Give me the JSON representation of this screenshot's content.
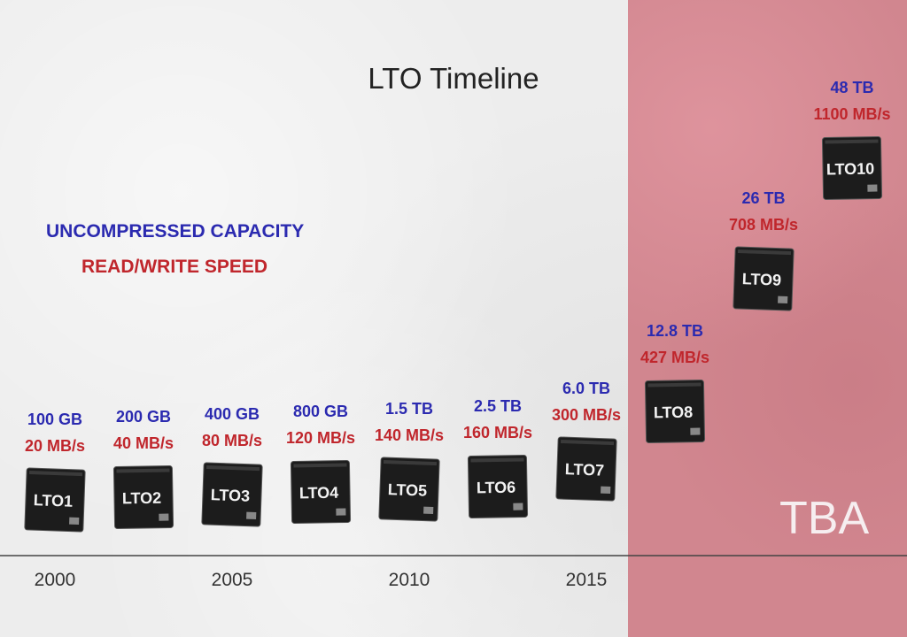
{
  "chart_data": {
    "type": "timeline",
    "title": "LTO Timeline",
    "legend": {
      "capacity_label": "UNCOMPRESSED CAPACITY",
      "speed_label": "READ/WRITE SPEED"
    },
    "x_ticks": [
      "2000",
      "2005",
      "2010",
      "2015"
    ],
    "tba_label": "TBA",
    "generations": [
      {
        "name": "LTO1",
        "capacity": "100 GB",
        "speed": "20 MB/s",
        "capacity_gb": 100,
        "speed_mbs": 20,
        "tba": false
      },
      {
        "name": "LTO2",
        "capacity": "200 GB",
        "speed": "40 MB/s",
        "capacity_gb": 200,
        "speed_mbs": 40,
        "tba": false
      },
      {
        "name": "LTO3",
        "capacity": "400 GB",
        "speed": "80 MB/s",
        "capacity_gb": 400,
        "speed_mbs": 80,
        "tba": false
      },
      {
        "name": "LTO4",
        "capacity": "800 GB",
        "speed": "120 MB/s",
        "capacity_gb": 800,
        "speed_mbs": 120,
        "tba": false
      },
      {
        "name": "LTO5",
        "capacity": "1.5 TB",
        "speed": "140 MB/s",
        "capacity_gb": 1500,
        "speed_mbs": 140,
        "tba": false
      },
      {
        "name": "LTO6",
        "capacity": "2.5 TB",
        "speed": "160 MB/s",
        "capacity_gb": 2500,
        "speed_mbs": 160,
        "tba": false
      },
      {
        "name": "LTO7",
        "capacity": "6.0 TB",
        "speed": "300 MB/s",
        "capacity_gb": 6000,
        "speed_mbs": 300,
        "tba": false
      },
      {
        "name": "LTO8",
        "capacity": "12.8 TB",
        "speed": "427 MB/s",
        "capacity_gb": 12800,
        "speed_mbs": 427,
        "tba": true
      },
      {
        "name": "LTO9",
        "capacity": "26 TB",
        "speed": "708 MB/s",
        "capacity_gb": 26000,
        "speed_mbs": 708,
        "tba": true
      },
      {
        "name": "LTO10",
        "capacity": "48 TB",
        "speed": "1100 MB/s",
        "capacity_gb": 48000,
        "speed_mbs": 1100,
        "tba": true
      }
    ],
    "colors": {
      "capacity": "#2b2ab0",
      "speed": "#c0262c",
      "tba_background": "#d1868f",
      "cartridge": "#1c1c1c",
      "axis": "#444444"
    }
  }
}
